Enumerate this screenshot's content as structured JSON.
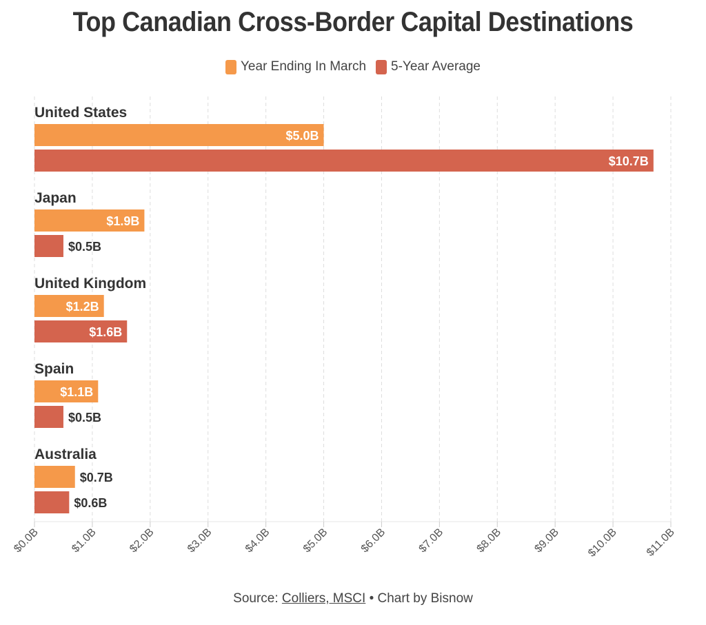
{
  "title": "Top Canadian Cross-Border Capital Destinations",
  "legend": [
    {
      "label": "Year Ending In March",
      "color": "#F5994A"
    },
    {
      "label": "5-Year Average",
      "color": "#D4644E"
    }
  ],
  "source": {
    "prefix": "Source: ",
    "link_text": "Colliers, MSCI",
    "suffix": " • Chart by Bisnow"
  },
  "chart_data": {
    "type": "bar",
    "orientation": "horizontal",
    "categories": [
      "United States",
      "Japan",
      "United Kingdom",
      "Spain",
      "Australia"
    ],
    "series": [
      {
        "name": "Year Ending In March",
        "color": "#F5994A",
        "values": [
          5.0,
          1.9,
          1.2,
          1.1,
          0.7
        ],
        "labels": [
          "$5.0B",
          "$1.9B",
          "$1.2B",
          "$1.1B",
          "$0.7B"
        ]
      },
      {
        "name": "5-Year Average",
        "color": "#D4644E",
        "values": [
          10.7,
          0.5,
          1.6,
          0.5,
          0.6
        ],
        "labels": [
          "$10.7B",
          "$0.5B",
          "$1.6B",
          "$0.5B",
          "$0.6B"
        ]
      }
    ],
    "xlim": [
      0,
      11
    ],
    "xticks": [
      "$0.0B",
      "$1.0B",
      "$2.0B",
      "$3.0B",
      "$4.0B",
      "$5.0B",
      "$6.0B",
      "$7.0B",
      "$8.0B",
      "$9.0B",
      "$10.0B",
      "$11.0B"
    ],
    "grid": true,
    "legend_position": "top"
  }
}
